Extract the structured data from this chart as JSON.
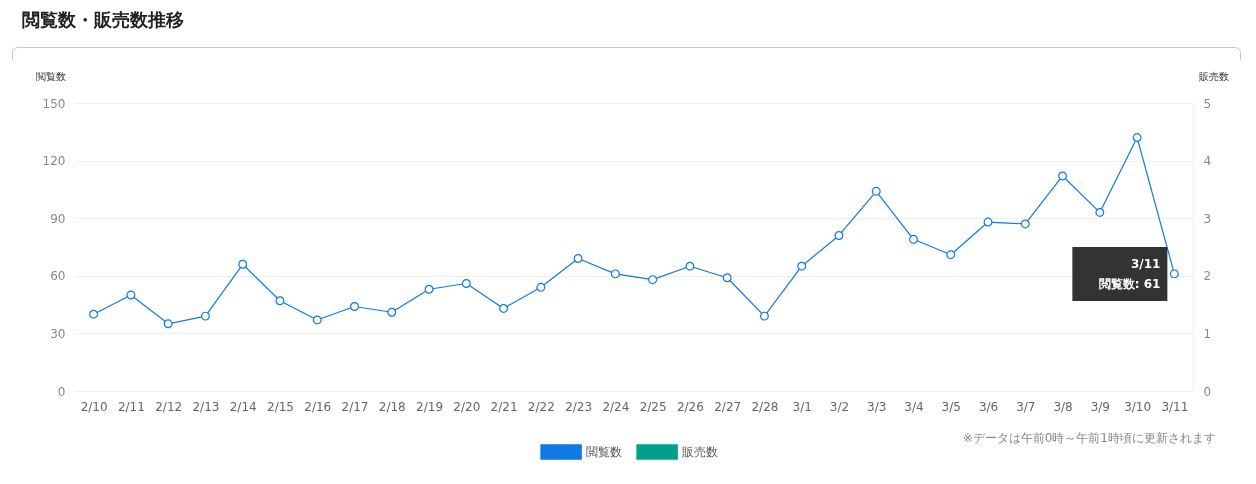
{
  "chart_data": {
    "type": "line",
    "title": "閲覧数・販売数推移",
    "ylabel": "閲覧数",
    "y2label": "販売数",
    "categories": [
      "2/10",
      "2/11",
      "2/12",
      "2/13",
      "2/14",
      "2/15",
      "2/16",
      "2/17",
      "2/18",
      "2/19",
      "2/20",
      "2/21",
      "2/22",
      "2/23",
      "2/24",
      "2/25",
      "2/26",
      "2/27",
      "2/28",
      "3/1",
      "3/2",
      "3/3",
      "3/4",
      "3/5",
      "3/6",
      "3/7",
      "3/8",
      "3/9",
      "3/10",
      "3/11"
    ],
    "series": [
      {
        "name": "閲覧数",
        "color": "#0f7ae5",
        "values": [
          40,
          50,
          35,
          39,
          66,
          47,
          37,
          44,
          41,
          53,
          56,
          43,
          54,
          69,
          61,
          58,
          65,
          59,
          39,
          65,
          81,
          104,
          79,
          71,
          88,
          87,
          112,
          93,
          132,
          61
        ]
      },
      {
        "name": "販売数",
        "type": "bar",
        "axis": "y2",
        "color": "#00a08a",
        "values": [
          0,
          0,
          0,
          0,
          0,
          0,
          0,
          0,
          0,
          0,
          0,
          0,
          0,
          0,
          0,
          0,
          0,
          0,
          0,
          0,
          0,
          0,
          0,
          0,
          0,
          0,
          0,
          0,
          0,
          0
        ]
      }
    ],
    "ylim": [
      0,
      150
    ],
    "yticks": [
      0,
      30,
      60,
      90,
      120,
      150
    ],
    "y2lim": [
      0,
      5
    ],
    "y2ticks": [
      0,
      1,
      2,
      3,
      4,
      5
    ],
    "grid": "y",
    "legend": "bottom",
    "marker": "circle",
    "annotations": [
      {
        "text": "3/11\n閲覧数: 61",
        "x": "3/11",
        "y": 61
      },
      "※データは午前0時～午前1時頃に更新されます"
    ]
  }
}
